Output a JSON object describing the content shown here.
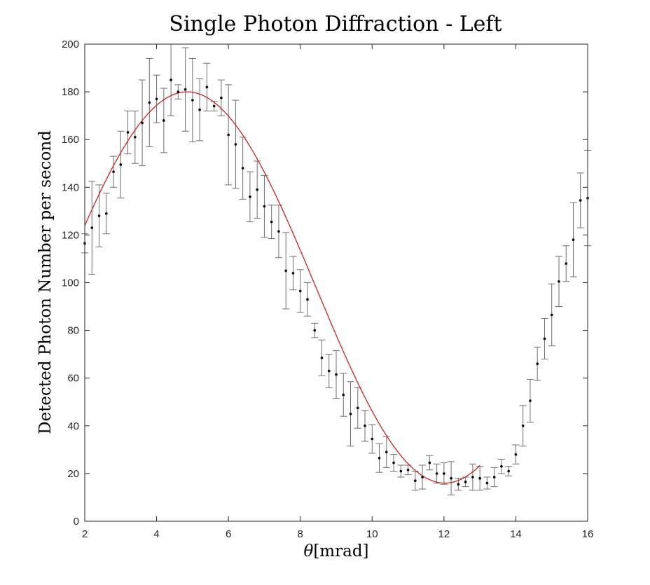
{
  "chart_data": {
    "type": "scatter",
    "title": "Single Photon Diffraction - Left",
    "xlabel_symbol": "θ",
    "xlabel_unit": "[mrad]",
    "ylabel": "Detected Photon Number per second",
    "xlim": [
      2,
      16
    ],
    "ylim": [
      0,
      200
    ],
    "xticks": [
      2,
      4,
      6,
      8,
      10,
      12,
      14,
      16
    ],
    "yticks": [
      0,
      20,
      40,
      60,
      80,
      100,
      120,
      140,
      160,
      180,
      200
    ],
    "grid": false,
    "legend": "none",
    "colors": {
      "points": "#000000",
      "errorbars": "#6e6e6e",
      "fit": "#d62020",
      "axes": "#262626"
    },
    "series": [
      {
        "type": "errorbar",
        "x": [
          2.0,
          2.2,
          2.4,
          2.6,
          2.8,
          3.0,
          3.2,
          3.4,
          3.6,
          3.8,
          4.0,
          4.2,
          4.4,
          4.6,
          4.8,
          5.0,
          5.2,
          5.4,
          5.6,
          5.8,
          6.0,
          6.2,
          6.4,
          6.6,
          6.8,
          7.0,
          7.2,
          7.4,
          7.6,
          7.8,
          8.0,
          8.2,
          8.4,
          8.6,
          8.8,
          9.0,
          9.2,
          9.4,
          9.6,
          9.8,
          10.0,
          10.2,
          10.4,
          10.6,
          10.8,
          11.0,
          11.2,
          11.4,
          11.6,
          11.8,
          12.0,
          12.2,
          12.4,
          12.6,
          12.8,
          13.0,
          13.2,
          13.4,
          13.6,
          13.8,
          14.0,
          14.2,
          14.4,
          14.6,
          14.8,
          15.0,
          15.2,
          15.4,
          15.6,
          15.8,
          16.0
        ],
        "y": [
          116.5,
          123,
          128,
          129,
          146.5,
          149.5,
          163,
          161,
          167,
          175.5,
          177,
          168,
          185,
          180,
          181,
          176.5,
          172.5,
          182,
          174,
          177.5,
          162,
          158,
          148,
          136,
          139,
          132,
          125.5,
          121.5,
          105,
          104,
          96.5,
          93,
          80,
          68.5,
          63,
          61.5,
          53,
          45,
          47.5,
          40,
          34.5,
          26.5,
          29,
          24.5,
          21,
          21.5,
          17,
          18.5,
          24.5,
          20,
          20,
          18,
          15.5,
          16.5,
          18.5,
          18,
          16,
          18.5,
          23,
          21,
          28,
          40,
          50.5,
          66,
          76.5,
          86.5,
          100.5,
          108,
          118,
          134.5,
          135.5
        ],
        "err": [
          4,
          19.5,
          13,
          8.5,
          6.5,
          14,
          9,
          11,
          18,
          18.5,
          10,
          13.5,
          15,
          3,
          17.5,
          17.5,
          13,
          10,
          2,
          7.5,
          21,
          18.5,
          13,
          10.5,
          12,
          13,
          7,
          11,
          16,
          7,
          9,
          7,
          3,
          7.5,
          7,
          10,
          9,
          13.5,
          8.5,
          6.5,
          6,
          6,
          6.5,
          3.5,
          2.5,
          2,
          4,
          5,
          3,
          4,
          4.5,
          7,
          2.5,
          2,
          5.5,
          5,
          2.5,
          4,
          3,
          2,
          4,
          8.5,
          9,
          7,
          8.5,
          13,
          10.5,
          7.5,
          15.5,
          11.5,
          20
        ]
      },
      {
        "type": "fit-curve",
        "xrange": [
          2,
          13
        ],
        "model": "A + B*cos(k*x + phi)",
        "params": {
          "A": 98,
          "B": 82,
          "k": 0.438,
          "phi": -2.125
        }
      }
    ]
  }
}
